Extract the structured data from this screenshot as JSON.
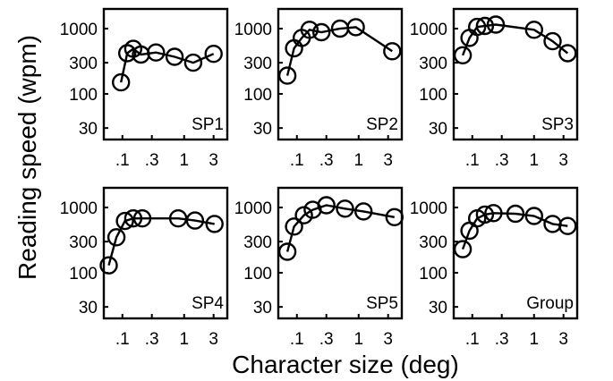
{
  "chart_data": {
    "type": "line",
    "xlabel": "Character size (deg)",
    "ylabel": "Reading speed (wpm)",
    "xscale": "log",
    "yscale": "log",
    "xlim": [
      0.05,
      5
    ],
    "ylim": [
      20,
      2000
    ],
    "xticks": [
      0.1,
      0.3,
      1,
      3
    ],
    "xtick_labels": [
      ".1",
      ".3",
      "1",
      "3"
    ],
    "yticks": [
      30,
      100,
      300,
      1000
    ],
    "ytick_labels": [
      "30",
      "100",
      "300",
      "1000"
    ],
    "grid": false,
    "panels": [
      {
        "label": "SP1",
        "x": [
          0.095,
          0.12,
          0.15,
          0.2,
          0.35,
          0.7,
          1.4,
          3
        ],
        "y": [
          150,
          420,
          490,
          400,
          430,
          370,
          300,
          410
        ]
      },
      {
        "label": "SP2",
        "x": [
          0.07,
          0.09,
          0.12,
          0.16,
          0.25,
          0.5,
          0.9,
          3.5
        ],
        "y": [
          190,
          500,
          720,
          960,
          880,
          1000,
          1050,
          450
        ]
      },
      {
        "label": "SP3",
        "x": [
          0.07,
          0.09,
          0.12,
          0.16,
          0.24,
          1.0,
          2.0,
          3.5
        ],
        "y": [
          390,
          720,
          1060,
          1100,
          1150,
          960,
          640,
          420
        ]
      },
      {
        "label": "SP4",
        "x": [
          0.06,
          0.08,
          0.11,
          0.15,
          0.21,
          0.8,
          1.5,
          3.1
        ],
        "y": [
          130,
          350,
          620,
          680,
          680,
          680,
          630,
          560
        ]
      },
      {
        "label": "SP5",
        "x": [
          0.07,
          0.09,
          0.13,
          0.18,
          0.3,
          0.6,
          1.2,
          3.8
        ],
        "y": [
          210,
          510,
          760,
          920,
          1080,
          960,
          870,
          710
        ]
      },
      {
        "label": "Group",
        "x": [
          0.07,
          0.09,
          0.12,
          0.16,
          0.22,
          0.5,
          1.0,
          2.0,
          3.5
        ],
        "y": [
          230,
          440,
          680,
          780,
          820,
          800,
          740,
          560,
          520
        ]
      }
    ]
  }
}
